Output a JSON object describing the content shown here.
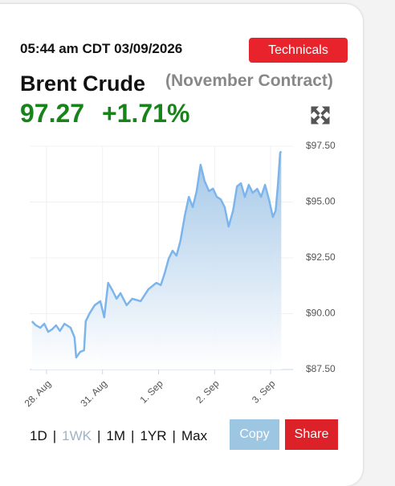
{
  "header": {
    "timestamp": "05:44 am CDT 03/09/2026",
    "technicals_button": "Technicals",
    "name": "Brent Crude",
    "contract": "(November Contract)",
    "price": "97.27",
    "change": "+1.71%"
  },
  "chart_data": {
    "type": "area",
    "x": [
      -0.26,
      -0.19,
      -0.11,
      -0.04,
      0.03,
      0.1,
      0.17,
      0.24,
      0.32,
      0.43,
      0.5,
      0.53,
      0.6,
      0.67,
      0.7,
      0.77,
      0.86,
      0.96,
      1.03,
      1.1,
      1.18,
      1.25,
      1.32,
      1.43,
      1.53,
      1.68,
      1.82,
      1.96,
      2.04,
      2.11,
      2.18,
      2.25,
      2.32,
      2.39,
      2.47,
      2.54,
      2.61,
      2.68,
      2.75,
      2.82,
      2.9,
      2.97,
      3.04,
      3.11,
      3.18,
      3.25,
      3.33,
      3.4,
      3.47,
      3.54,
      3.61,
      3.68,
      3.76,
      3.83,
      3.9,
      3.97,
      4.04,
      4.09,
      4.13,
      4.17,
      4.19
    ],
    "series": [
      {
        "color": "#7cb5ec",
        "values": [
          89.66,
          89.48,
          89.37,
          89.55,
          89.19,
          89.3,
          89.48,
          89.23,
          89.55,
          89.37,
          88.94,
          88.04,
          88.29,
          88.36,
          89.66,
          90.02,
          90.38,
          90.56,
          89.84,
          91.38,
          91.03,
          90.67,
          90.92,
          90.38,
          90.67,
          90.56,
          91.1,
          91.38,
          91.28,
          91.82,
          92.46,
          92.82,
          92.6,
          93.26,
          94.41,
          95.23,
          94.77,
          95.49,
          96.67,
          95.95,
          95.49,
          95.6,
          95.23,
          95.12,
          94.77,
          93.9,
          94.62,
          95.7,
          95.84,
          95.23,
          95.77,
          95.41,
          95.59,
          95.23,
          95.77,
          95.12,
          94.33,
          94.62,
          95.77,
          97.21,
          97.27
        ]
      }
    ],
    "xlim": [
      -0.3,
      4.4
    ],
    "ylim": [
      87.5,
      97.5
    ],
    "xticks": [
      {
        "value": 0,
        "label": "28. Aug"
      },
      {
        "value": 1,
        "label": "31. Aug"
      },
      {
        "value": 2,
        "label": "1. Sep"
      },
      {
        "value": 3,
        "label": "2. Sep"
      },
      {
        "value": 4,
        "label": "3. Sep"
      }
    ],
    "yticks": [
      {
        "value": 87.5,
        "label": "$87.50"
      },
      {
        "value": 90,
        "label": "$90.00"
      },
      {
        "value": 92.5,
        "label": "$92.50"
      },
      {
        "value": 95,
        "label": "$95.00"
      },
      {
        "value": 97.5,
        "label": "$97.50"
      }
    ],
    "grid": true
  },
  "range_buttons": [
    "1D",
    "1WK",
    "1M",
    "1YR",
    "Max"
  ],
  "separator": "|",
  "copy_button": "Copy",
  "share_button": "Share"
}
